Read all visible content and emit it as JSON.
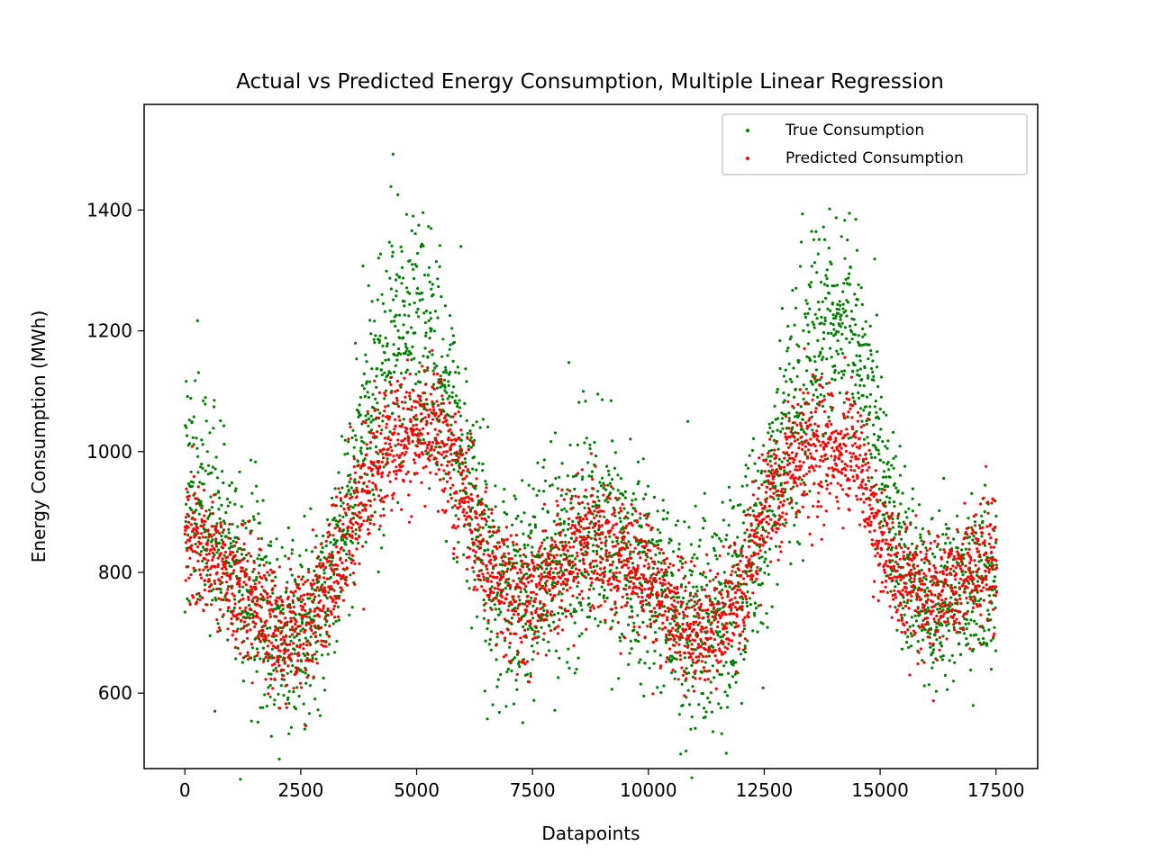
{
  "chart_data": {
    "type": "scatter",
    "title": "Actual vs Predicted Energy Consumption, Multiple Linear Regression",
    "xlabel": "Datapoints",
    "ylabel": "Energy Consumption (MWh)",
    "xlim": [
      -880,
      18400
    ],
    "ylim": [
      475,
      1575
    ],
    "xticks": [
      0,
      2500,
      5000,
      7500,
      10000,
      12500,
      15000,
      17500
    ],
    "xtick_labels": [
      "0",
      "2500",
      "5000",
      "7500",
      "10000",
      "12500",
      "15000",
      "17500"
    ],
    "yticks": [
      600,
      800,
      1000,
      1200,
      1400
    ],
    "ytick_labels": [
      "600",
      "800",
      "1000",
      "1200",
      "1400"
    ],
    "grid": false,
    "legend_position": "top-right",
    "n_points": 17520,
    "series": [
      {
        "name": "True Consumption",
        "color": "#008000",
        "trend": [
          [
            0,
            960
          ],
          [
            500,
            900
          ],
          [
            1000,
            830
          ],
          [
            1500,
            760
          ],
          [
            2000,
            700
          ],
          [
            2500,
            690
          ],
          [
            3000,
            760
          ],
          [
            3500,
            900
          ],
          [
            4000,
            1070
          ],
          [
            4500,
            1170
          ],
          [
            5000,
            1190
          ],
          [
            5500,
            1130
          ],
          [
            6000,
            980
          ],
          [
            6500,
            830
          ],
          [
            7000,
            760
          ],
          [
            7500,
            780
          ],
          [
            8000,
            830
          ],
          [
            8500,
            860
          ],
          [
            9000,
            860
          ],
          [
            9500,
            830
          ],
          [
            10000,
            800
          ],
          [
            10500,
            740
          ],
          [
            11000,
            700
          ],
          [
            11500,
            710
          ],
          [
            12000,
            760
          ],
          [
            12500,
            900
          ],
          [
            13000,
            1030
          ],
          [
            13500,
            1140
          ],
          [
            14000,
            1220
          ],
          [
            14500,
            1180
          ],
          [
            15000,
            1000
          ],
          [
            15500,
            800
          ],
          [
            16000,
            730
          ],
          [
            16500,
            760
          ],
          [
            17000,
            780
          ],
          [
            17500,
            790
          ]
        ],
        "spread": [
          [
            0,
            150
          ],
          [
            3000,
            120
          ],
          [
            5000,
            170
          ],
          [
            7000,
            140
          ],
          [
            10000,
            130
          ],
          [
            13500,
            160
          ],
          [
            15500,
            110
          ],
          [
            17500,
            110
          ]
        ]
      },
      {
        "name": "Predicted Consumption",
        "color": "#ff0000",
        "trend": [
          [
            0,
            860
          ],
          [
            500,
            830
          ],
          [
            1000,
            790
          ],
          [
            1500,
            740
          ],
          [
            2000,
            705
          ],
          [
            2500,
            700
          ],
          [
            3000,
            760
          ],
          [
            3500,
            860
          ],
          [
            4000,
            960
          ],
          [
            4500,
            1020
          ],
          [
            5000,
            1040
          ],
          [
            5500,
            1030
          ],
          [
            6000,
            940
          ],
          [
            6500,
            820
          ],
          [
            7000,
            760
          ],
          [
            7500,
            760
          ],
          [
            8000,
            810
          ],
          [
            8500,
            840
          ],
          [
            9000,
            840
          ],
          [
            9500,
            820
          ],
          [
            10000,
            790
          ],
          [
            10500,
            740
          ],
          [
            11000,
            700
          ],
          [
            11500,
            705
          ],
          [
            12000,
            760
          ],
          [
            12500,
            900
          ],
          [
            13000,
            980
          ],
          [
            13500,
            1010
          ],
          [
            14000,
            1010
          ],
          [
            14500,
            1000
          ],
          [
            15000,
            850
          ],
          [
            15500,
            790
          ],
          [
            16000,
            760
          ],
          [
            16500,
            770
          ],
          [
            17000,
            800
          ],
          [
            17500,
            830
          ]
        ],
        "spread": [
          [
            0,
            80
          ],
          [
            5000,
            90
          ],
          [
            10000,
            80
          ],
          [
            17500,
            80
          ]
        ],
        "ymax": 1180,
        "ymin": 520
      }
    ]
  }
}
